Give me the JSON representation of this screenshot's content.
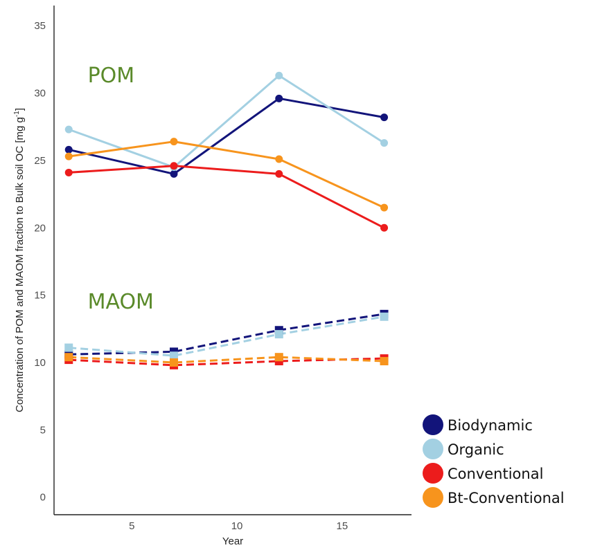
{
  "chart_data": {
    "type": "line",
    "xlabel": "Year",
    "ylabel": "Concentration of POM and MAOM fraction to Bulk soil OC [mg g",
    "ylabel_sup": "-1",
    "ylabel_end": "]",
    "xlim": [
      1.3,
      18.3
    ],
    "ylim": [
      -1.3,
      36.5
    ],
    "xticks": [
      5,
      10,
      15
    ],
    "yticks": [
      0,
      5,
      10,
      15,
      20,
      25,
      30,
      35
    ],
    "grid": false,
    "legend_position": "bottom-right",
    "x": [
      2,
      7,
      12,
      17
    ],
    "group_labels": [
      {
        "text": "POM",
        "x": 2.9,
        "y": 30.8
      },
      {
        "text": "MAOM",
        "x": 2.9,
        "y": 14.0
      }
    ],
    "series": [
      {
        "name": "Biodynamic",
        "color": "#12147a",
        "pom": [
          25.8,
          24.0,
          29.6,
          28.2
        ],
        "maom": [
          10.6,
          10.8,
          12.4,
          13.6
        ]
      },
      {
        "name": "Organic",
        "color": "#a3d0e2",
        "pom": [
          27.3,
          24.5,
          31.3,
          26.3
        ],
        "maom": [
          11.1,
          10.5,
          12.1,
          13.4
        ]
      },
      {
        "name": "Conventional",
        "color": "#ec1c1c",
        "pom": [
          24.1,
          24.6,
          24.0,
          20.0
        ],
        "maom": [
          10.2,
          9.8,
          10.1,
          10.3
        ]
      },
      {
        "name": "Bt-Conventional",
        "color": "#f7941d",
        "pom": [
          25.3,
          26.4,
          25.1,
          21.5
        ],
        "maom": [
          10.4,
          10.0,
          10.4,
          10.1
        ]
      }
    ]
  }
}
